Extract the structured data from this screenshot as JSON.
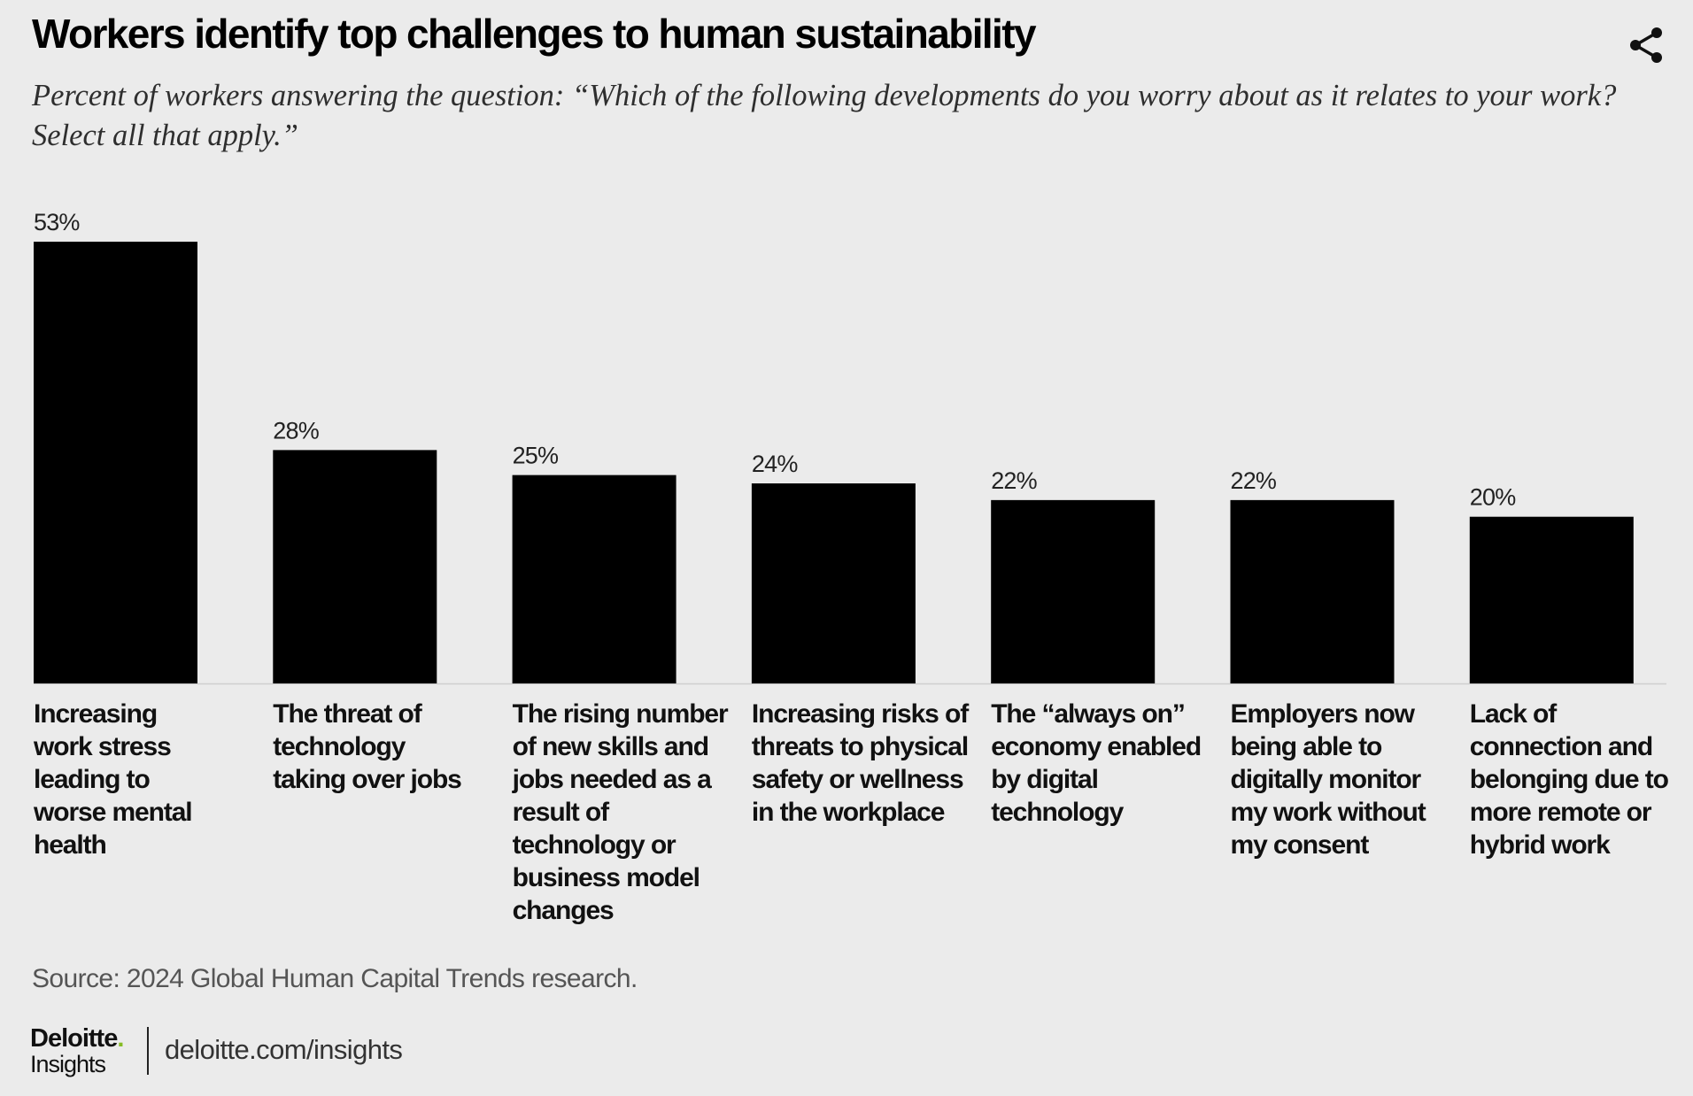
{
  "header": {
    "title": "Workers identify top challenges to human sustainability",
    "subtitle": "Percent of workers answering the question: “Which of the following developments do you worry about as it relates to your work? Select all that apply.”",
    "share_icon": "share-icon"
  },
  "chart_data": {
    "type": "bar",
    "title": "Workers identify top challenges to human sustainability",
    "categories": [
      [
        "Increasing",
        "work stress",
        "leading to",
        "worse mental",
        "health"
      ],
      [
        "The threat of",
        "technology",
        "taking over jobs"
      ],
      [
        "The rising number",
        "of new skills and",
        "jobs needed as a",
        "result of",
        "technology or",
        "business model",
        "changes"
      ],
      [
        "Increasing risks of",
        "threats to physical",
        "safety or wellness",
        "in the workplace"
      ],
      [
        "The “always on”",
        "economy enabled",
        "by digital",
        "technology"
      ],
      [
        "Employers now",
        "being able to",
        "digitally monitor",
        "my work without",
        "my consent"
      ],
      [
        "Lack of",
        "connection and",
        "belonging due to",
        "more remote or",
        "hybrid work"
      ]
    ],
    "values": [
      53,
      28,
      25,
      24,
      22,
      22,
      20
    ],
    "value_labels": [
      "53%",
      "28%",
      "25%",
      "24%",
      "22%",
      "22%",
      "20%"
    ],
    "bar_color": "#000000",
    "ylim": [
      0,
      53
    ],
    "grid": false,
    "legend": "none",
    "xlabel": "",
    "ylabel": ""
  },
  "footer": {
    "source": "Source: 2024 Global Human Capital Trends research.",
    "brand_name": "Deloitte",
    "brand_dot": ".",
    "brand_sub": "Insights",
    "url": "deloitte.com/insights"
  },
  "colors": {
    "background": "#ebebeb",
    "bar": "#000000",
    "brand_accent": "#86bc25"
  }
}
